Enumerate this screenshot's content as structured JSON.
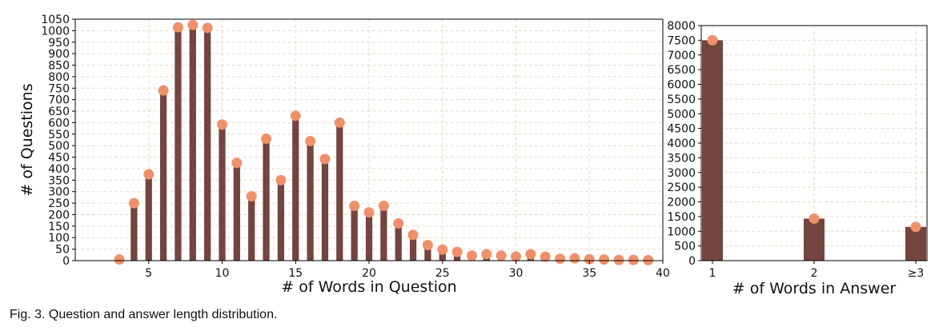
{
  "caption": "Fig. 3. Question and answer length distribution.",
  "colors": {
    "bar": "#74443e",
    "marker": "#f0906a",
    "grid": "#ecd9c4"
  },
  "chart_data": [
    {
      "type": "bar",
      "overlay": "scatter-markers",
      "xlabel": "# of Words in Question",
      "ylabel": "# of Questions",
      "xlim": [
        0,
        40
      ],
      "ylim": [
        0,
        1050
      ],
      "xticks": [
        5,
        10,
        15,
        20,
        25,
        30,
        35,
        40
      ],
      "yticks": [
        0,
        50,
        100,
        150,
        200,
        250,
        300,
        350,
        400,
        450,
        500,
        550,
        600,
        650,
        700,
        750,
        800,
        850,
        900,
        950,
        1000,
        1050
      ],
      "grid": true,
      "x": [
        3,
        4,
        5,
        6,
        7,
        8,
        9,
        10,
        11,
        12,
        13,
        14,
        15,
        16,
        17,
        18,
        19,
        20,
        21,
        22,
        23,
        24,
        25,
        26,
        27,
        28,
        29,
        30,
        31,
        32,
        33,
        34,
        35,
        36,
        37,
        38,
        39
      ],
      "values": [
        5,
        250,
        375,
        740,
        1015,
        1025,
        1012,
        592,
        425,
        280,
        530,
        350,
        630,
        520,
        442,
        600,
        238,
        210,
        238,
        162,
        112,
        68,
        48,
        38,
        22,
        28,
        22,
        18,
        28,
        17,
        8,
        10,
        6,
        5,
        3,
        3,
        2
      ]
    },
    {
      "type": "bar",
      "overlay": "scatter-markers",
      "xlabel": "# of Words in Answer",
      "ylabel": "",
      "categories": [
        "1",
        "2",
        "≥3"
      ],
      "values": [
        7500,
        1430,
        1150
      ],
      "ylim": [
        0,
        8000
      ],
      "yticks": [
        0,
        500,
        1000,
        1500,
        2000,
        2500,
        3000,
        3500,
        4000,
        4500,
        5000,
        5500,
        6000,
        6500,
        7000,
        7500,
        8000
      ],
      "grid": true
    }
  ]
}
